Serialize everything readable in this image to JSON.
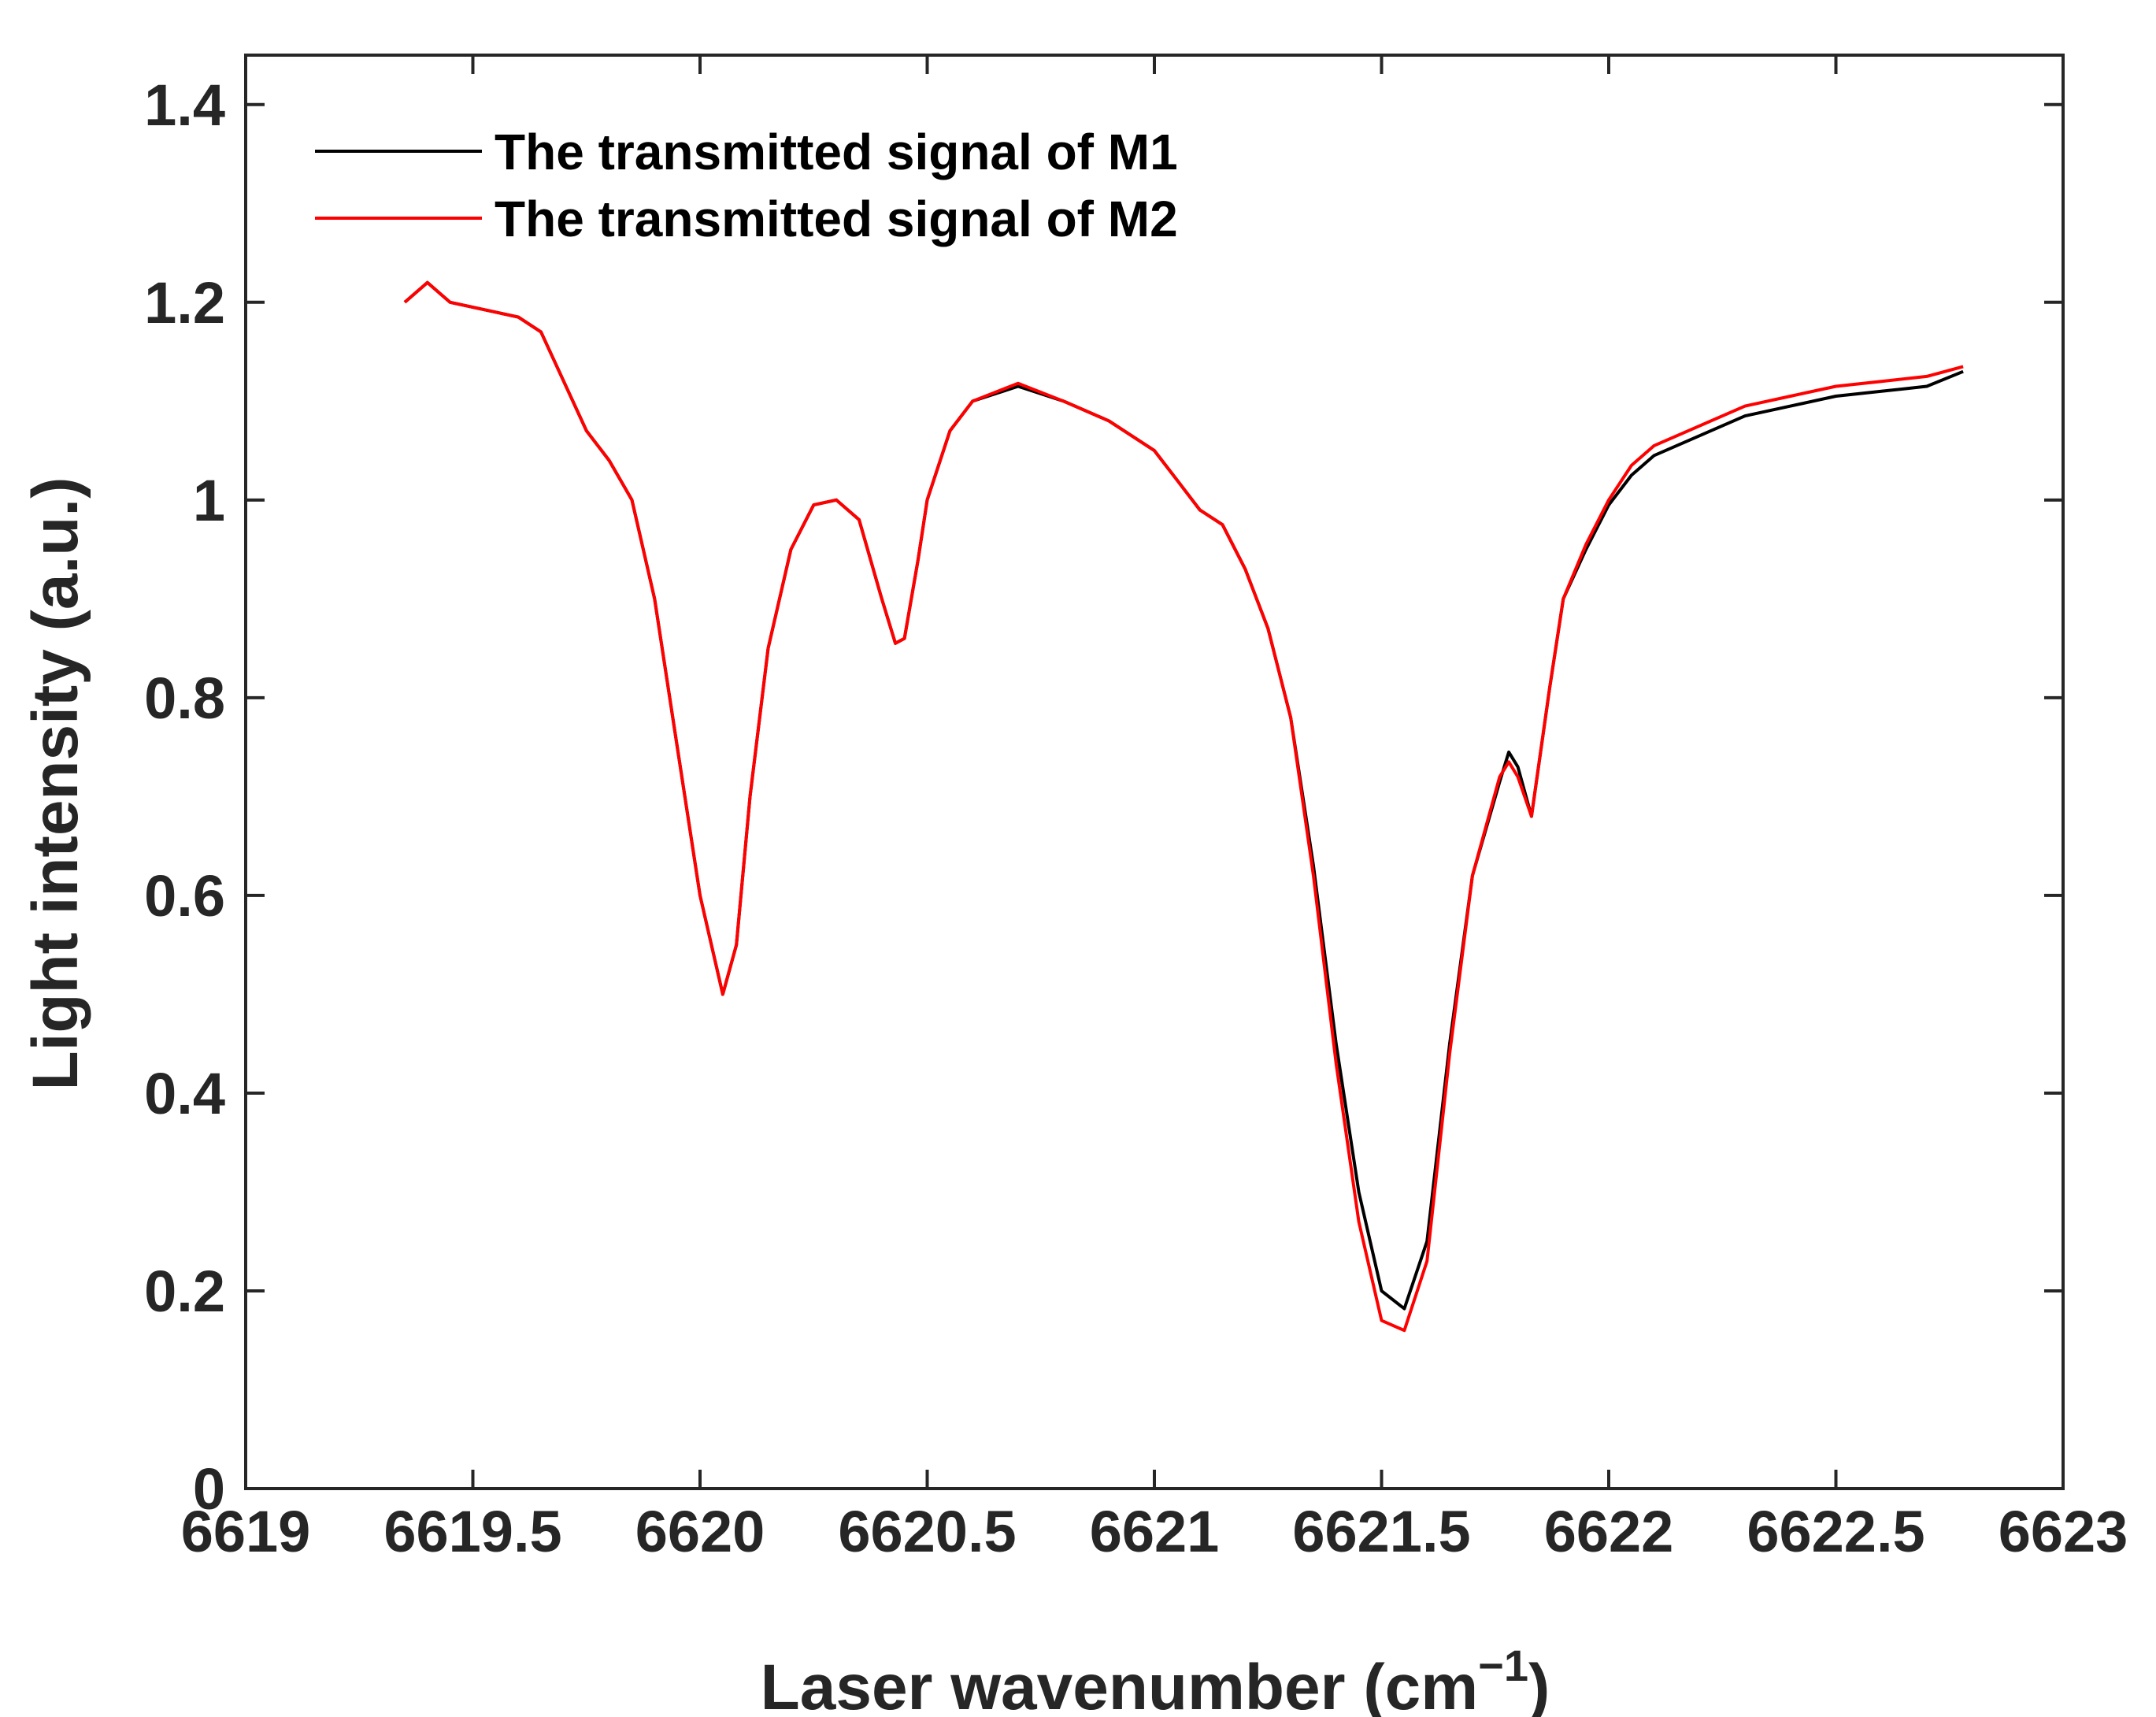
{
  "chart_data": {
    "type": "line",
    "title": "",
    "xlabel": "Laser wavenumber (cm",
    "xlabel_superscript": "−1",
    "xlabel_suffix": ")",
    "ylabel": "Light intensity (a.u.)",
    "xlim": [
      6619,
      6623
    ],
    "ylim": [
      0,
      1.45
    ],
    "xticks": [
      6619,
      6619.5,
      6620,
      6620.5,
      6621,
      6621.5,
      6622,
      6622.5,
      6623
    ],
    "xtick_labels": [
      "6619",
      "6619.5",
      "6620",
      "6620.5",
      "6621",
      "6621.5",
      "6622",
      "6622.5",
      "6623"
    ],
    "yticks": [
      0,
      0.2,
      0.4,
      0.6,
      0.8,
      1.0,
      1.2,
      1.4
    ],
    "ytick_labels": [
      "0",
      "0.2",
      "0.4",
      "0.6",
      "0.8",
      "1",
      "1.2",
      "1.4"
    ],
    "grid": false,
    "legend_position": "top-left",
    "series": [
      {
        "name": "The transmitted signal of M1",
        "color": "#000000",
        "x": [
          6619.35,
          6619.4,
          6619.45,
          6619.5,
          6619.55,
          6619.6,
          6619.65,
          6619.7,
          6619.75,
          6619.8,
          6619.85,
          6619.9,
          6619.95,
          6620.0,
          6620.05,
          6620.08,
          6620.11,
          6620.15,
          6620.2,
          6620.25,
          6620.3,
          6620.35,
          6620.4,
          6620.43,
          6620.45,
          6620.48,
          6620.5,
          6620.55,
          6620.6,
          6620.7,
          6620.8,
          6620.9,
          6621.0,
          6621.05,
          6621.1,
          6621.15,
          6621.2,
          6621.25,
          6621.3,
          6621.35,
          6621.4,
          6621.45,
          6621.5,
          6621.55,
          6621.6,
          6621.65,
          6621.7,
          6621.76,
          6621.78,
          6621.8,
          6621.83,
          6621.87,
          6621.9,
          6621.95,
          6622.0,
          6622.05,
          6622.1,
          6622.2,
          6622.3,
          6622.4,
          6622.5,
          6622.6,
          6622.7,
          6622.78
        ],
        "values": [
          1.2,
          1.22,
          1.2,
          1.195,
          1.19,
          1.185,
          1.17,
          1.12,
          1.07,
          1.04,
          1.0,
          0.9,
          0.75,
          0.6,
          0.5,
          0.55,
          0.7,
          0.85,
          0.95,
          0.995,
          1.0,
          0.98,
          0.9,
          0.855,
          0.86,
          0.94,
          1.0,
          1.07,
          1.1,
          1.115,
          1.1,
          1.08,
          1.05,
          1.02,
          0.99,
          0.975,
          0.93,
          0.87,
          0.78,
          0.63,
          0.45,
          0.3,
          0.2,
          0.182,
          0.25,
          0.45,
          0.62,
          0.715,
          0.745,
          0.73,
          0.68,
          0.81,
          0.9,
          0.95,
          0.995,
          1.025,
          1.045,
          1.065,
          1.085,
          1.095,
          1.105,
          1.11,
          1.115,
          1.13
        ]
      },
      {
        "name": "The transmitted signal of M2",
        "color": "#ff0000",
        "x": [
          6619.35,
          6619.4,
          6619.45,
          6619.5,
          6619.55,
          6619.6,
          6619.65,
          6619.7,
          6619.75,
          6619.8,
          6619.85,
          6619.9,
          6619.95,
          6620.0,
          6620.05,
          6620.08,
          6620.11,
          6620.15,
          6620.2,
          6620.25,
          6620.3,
          6620.35,
          6620.4,
          6620.43,
          6620.45,
          6620.48,
          6620.5,
          6620.55,
          6620.6,
          6620.7,
          6620.8,
          6620.9,
          6621.0,
          6621.05,
          6621.1,
          6621.15,
          6621.2,
          6621.25,
          6621.3,
          6621.35,
          6621.4,
          6621.45,
          6621.5,
          6621.55,
          6621.6,
          6621.65,
          6621.7,
          6621.76,
          6621.78,
          6621.8,
          6621.83,
          6621.87,
          6621.9,
          6621.95,
          6622.0,
          6622.05,
          6622.1,
          6622.2,
          6622.3,
          6622.4,
          6622.5,
          6622.6,
          6622.7,
          6622.78
        ],
        "values": [
          1.2,
          1.22,
          1.2,
          1.195,
          1.19,
          1.185,
          1.17,
          1.12,
          1.07,
          1.04,
          1.0,
          0.9,
          0.75,
          0.6,
          0.5,
          0.55,
          0.7,
          0.85,
          0.95,
          0.995,
          1.0,
          0.98,
          0.9,
          0.855,
          0.86,
          0.94,
          1.0,
          1.07,
          1.1,
          1.118,
          1.1,
          1.08,
          1.05,
          1.02,
          0.99,
          0.975,
          0.93,
          0.87,
          0.78,
          0.62,
          0.43,
          0.27,
          0.17,
          0.16,
          0.23,
          0.44,
          0.62,
          0.72,
          0.735,
          0.72,
          0.68,
          0.81,
          0.9,
          0.955,
          1.0,
          1.035,
          1.055,
          1.075,
          1.095,
          1.105,
          1.115,
          1.12,
          1.125,
          1.135
        ]
      }
    ]
  }
}
